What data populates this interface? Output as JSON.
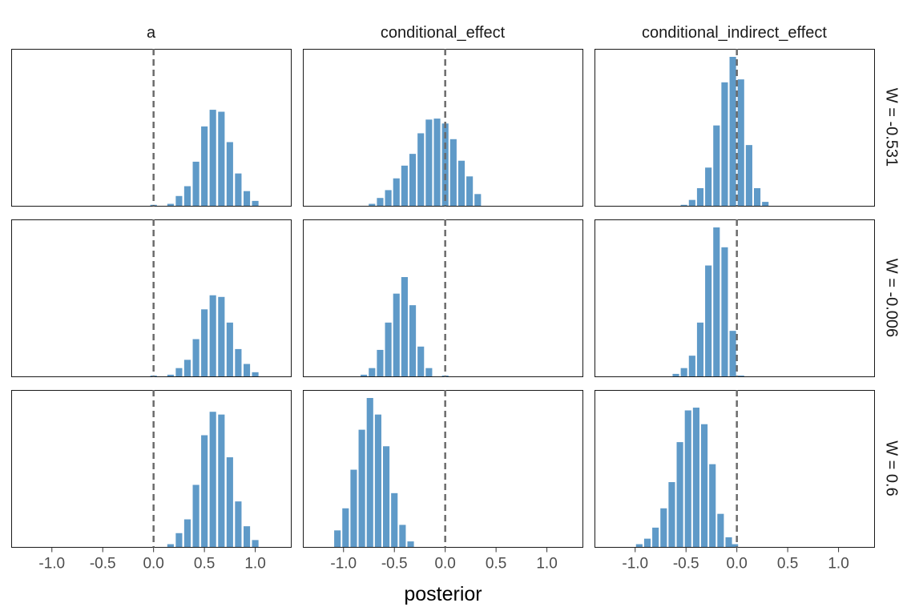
{
  "chart_data": {
    "type": "bar",
    "subtype": "faceted-histogram",
    "title": "",
    "xlabel": "posterior",
    "ylabel": "",
    "xlim": [
      -1.4,
      1.35
    ],
    "x_ticks": [
      -1.0,
      -0.5,
      0.0,
      0.5,
      1.0
    ],
    "x_tick_labels": [
      "-1.0",
      "-0.5",
      "0.0",
      "0.5",
      "1.0"
    ],
    "reference_line": {
      "x": 0,
      "style": "dashed",
      "color": "#6b6b6b"
    },
    "bar_color": "#5f9ac8",
    "grid": false,
    "legend": "none",
    "columns": [
      "a",
      "conditional_effect",
      "conditional_indirect_effect"
    ],
    "rows": [
      "W = -0.531",
      "W = -0.006",
      "W = 0.6"
    ],
    "bin_width": 0.083,
    "panels": [
      {
        "column": "a",
        "row": "W = -0.531",
        "bin_centers": [
          0.0,
          0.167,
          0.25,
          0.333,
          0.417,
          0.5,
          0.583,
          0.667,
          0.75,
          0.833,
          0.917,
          1.0
        ],
        "counts": [
          1,
          2,
          10,
          20,
          45,
          81,
          98,
          96,
          65,
          33,
          15,
          5
        ]
      },
      {
        "column": "conditional_effect",
        "row": "W = -0.531",
        "bin_centers": [
          -0.72,
          -0.64,
          -0.56,
          -0.48,
          -0.4,
          -0.32,
          -0.24,
          -0.16,
          -0.08,
          0.0,
          0.08,
          0.16,
          0.24,
          0.32
        ],
        "counts": [
          2,
          8,
          16,
          28,
          41,
          53,
          74,
          88,
          89,
          84,
          68,
          46,
          30,
          12
        ]
      },
      {
        "column": "conditional_indirect_effect",
        "row": "W = -0.531",
        "bin_centers": [
          -0.52,
          -0.44,
          -0.36,
          -0.28,
          -0.2,
          -0.12,
          -0.04,
          0.04,
          0.12,
          0.2,
          0.28
        ],
        "counts": [
          1,
          6,
          18,
          39,
          82,
          126,
          152,
          129,
          62,
          18,
          4
        ]
      },
      {
        "column": "a",
        "row": "W = -0.006",
        "bin_centers": [
          0.0,
          0.167,
          0.25,
          0.333,
          0.417,
          0.5,
          0.583,
          0.667,
          0.75,
          0.833,
          0.917,
          1.0
        ],
        "counts": [
          1,
          2,
          10,
          20,
          45,
          81,
          98,
          96,
          65,
          33,
          15,
          5
        ]
      },
      {
        "column": "conditional_effect",
        "row": "W = -0.006",
        "bin_centers": [
          -0.8,
          -0.72,
          -0.64,
          -0.56,
          -0.48,
          -0.4,
          -0.32,
          -0.24,
          -0.16,
          0.0
        ],
        "counts": [
          2,
          10,
          32,
          65,
          100,
          120,
          86,
          36,
          10,
          1
        ]
      },
      {
        "column": "conditional_indirect_effect",
        "row": "W = -0.006",
        "bin_centers": [
          -0.6,
          -0.52,
          -0.44,
          -0.36,
          -0.28,
          -0.2,
          -0.12,
          -0.04,
          0.04
        ],
        "counts": [
          3,
          10,
          25,
          65,
          134,
          180,
          156,
          55,
          1
        ]
      },
      {
        "column": "a",
        "row": "W = 0.6",
        "bin_centers": [
          0.167,
          0.25,
          0.333,
          0.417,
          0.5,
          0.583,
          0.667,
          0.75,
          0.833,
          0.917,
          1.0
        ],
        "counts": [
          2,
          10,
          20,
          45,
          81,
          98,
          96,
          65,
          33,
          15,
          5
        ]
      },
      {
        "column": "conditional_effect",
        "row": "W = 0.6",
        "bin_centers": [
          -1.06,
          -0.98,
          -0.9,
          -0.82,
          -0.74,
          -0.66,
          -0.58,
          -0.5,
          -0.42,
          -0.34
        ],
        "counts": [
          12,
          28,
          56,
          85,
          108,
          96,
          73,
          39,
          16,
          4
        ]
      },
      {
        "column": "conditional_indirect_effect",
        "row": "W = 0.6",
        "bin_centers": [
          -0.96,
          -0.88,
          -0.8,
          -0.72,
          -0.64,
          -0.56,
          -0.48,
          -0.4,
          -0.32,
          -0.24,
          -0.16,
          -0.08,
          -0.02
        ],
        "counts": [
          2,
          6,
          14,
          28,
          47,
          76,
          99,
          101,
          89,
          60,
          24,
          7,
          2
        ]
      }
    ]
  }
}
